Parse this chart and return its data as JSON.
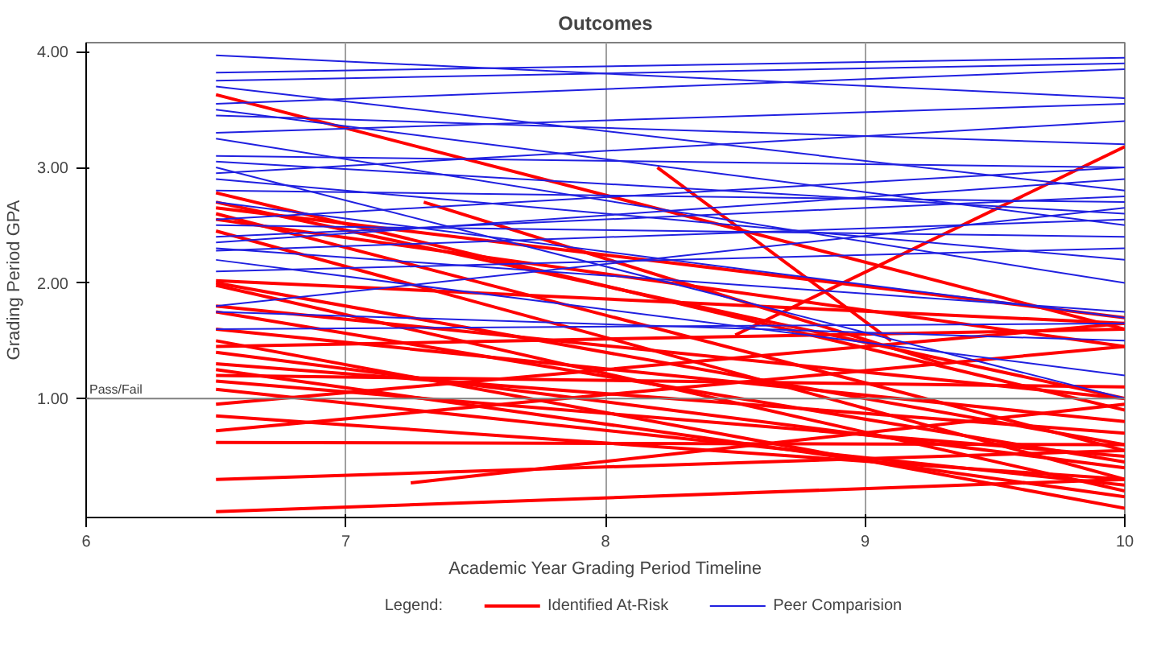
{
  "chart_data": {
    "type": "line",
    "title": "Outcomes",
    "xlabel": "Academic Year Grading Period Timeline",
    "ylabel": "Grading Period GPA",
    "legend_title": "Legend:",
    "legend": "bottom",
    "grid": "x",
    "marker": "none",
    "line_style": "solid",
    "xlim": [
      6,
      10
    ],
    "ylim": [
      -0.03,
      4.08
    ],
    "xticks": [
      6,
      7,
      8,
      9,
      10
    ],
    "yticks": [
      {
        "value": 1,
        "label": "1.00"
      },
      {
        "value": 2,
        "label": "2.00"
      },
      {
        "value": 3,
        "label": "3.00"
      },
      {
        "value": 4,
        "label": "4.00"
      }
    ],
    "ref_lines": [
      {
        "axis": "y",
        "value": 1,
        "label": "Pass/Fail",
        "color": "#808080"
      }
    ],
    "series": [
      {
        "name": "Identified At-Risk",
        "color": "#ff0000",
        "x": [
          6.5,
          10
        ],
        "values": [
          3.63,
          1.6
        ]
      },
      {
        "color": "#ff0000",
        "x": [
          6.5,
          10
        ],
        "values": [
          2.78,
          0.9
        ]
      },
      {
        "color": "#ff0000",
        "x": [
          6.5,
          10
        ],
        "values": [
          2.7,
          1.0
        ]
      },
      {
        "color": "#ff0000",
        "x": [
          6.5,
          10
        ],
        "values": [
          2.65,
          1.7
        ]
      },
      {
        "color": "#ff0000",
        "x": [
          6.5,
          10
        ],
        "values": [
          2.6,
          0.55
        ]
      },
      {
        "color": "#ff0000",
        "x": [
          6.5,
          10
        ],
        "values": [
          2.55,
          1.45
        ]
      },
      {
        "color": "#ff0000",
        "x": [
          6.5,
          10
        ],
        "values": [
          2.45,
          0.3
        ]
      },
      {
        "color": "#ff0000",
        "x": [
          6.5,
          10
        ],
        "values": [
          2.02,
          1.65
        ]
      },
      {
        "color": "#ff0000",
        "x": [
          6.5,
          10
        ],
        "values": [
          2.0,
          0.6
        ]
      },
      {
        "color": "#ff0000",
        "x": [
          6.5,
          10
        ],
        "values": [
          1.98,
          0.2
        ]
      },
      {
        "color": "#ff0000",
        "x": [
          6.5,
          10
        ],
        "values": [
          1.8,
          1.0
        ]
      },
      {
        "color": "#ff0000",
        "x": [
          6.5,
          10
        ],
        "values": [
          1.75,
          0.45
        ]
      },
      {
        "color": "#ff0000",
        "x": [
          6.5,
          10
        ],
        "values": [
          1.6,
          0.8
        ]
      },
      {
        "color": "#ff0000",
        "x": [
          6.5,
          10
        ],
        "values": [
          1.5,
          0.05
        ]
      },
      {
        "color": "#ff0000",
        "x": [
          6.5,
          10
        ],
        "values": [
          1.45,
          1.6
        ]
      },
      {
        "color": "#ff0000",
        "x": [
          6.5,
          10
        ],
        "values": [
          1.4,
          0.4
        ]
      },
      {
        "color": "#ff0000",
        "x": [
          6.5,
          10
        ],
        "values": [
          1.3,
          0.7
        ]
      },
      {
        "color": "#ff0000",
        "x": [
          6.5,
          10
        ],
        "values": [
          1.25,
          0.15
        ]
      },
      {
        "color": "#ff0000",
        "x": [
          6.5,
          10
        ],
        "values": [
          1.2,
          1.1
        ]
      },
      {
        "color": "#ff0000",
        "x": [
          6.5,
          10
        ],
        "values": [
          1.15,
          0.5
        ]
      },
      {
        "color": "#ff0000",
        "x": [
          6.5,
          10
        ],
        "values": [
          1.08,
          0.25
        ]
      },
      {
        "color": "#ff0000",
        "x": [
          6.5,
          10
        ],
        "values": [
          0.95,
          1.65
        ]
      },
      {
        "color": "#ff0000",
        "x": [
          6.5,
          10
        ],
        "values": [
          0.85,
          0.3
        ]
      },
      {
        "color": "#ff0000",
        "x": [
          6.5,
          10
        ],
        "values": [
          0.72,
          1.45
        ]
      },
      {
        "color": "#ff0000",
        "x": [
          6.5,
          10
        ],
        "values": [
          0.62,
          0.6
        ]
      },
      {
        "color": "#ff0000",
        "x": [
          6.5,
          10
        ],
        "values": [
          0.3,
          0.55
        ]
      },
      {
        "color": "#ff0000",
        "x": [
          6.5,
          10
        ],
        "values": [
          0.02,
          0.3
        ]
      },
      {
        "color": "#ff0000",
        "x": [
          7.25,
          10
        ],
        "values": [
          0.27,
          0.95
        ]
      },
      {
        "color": "#ff0000",
        "x": [
          8.2,
          9.1
        ],
        "values": [
          3.0,
          1.5
        ]
      },
      {
        "color": "#ff0000",
        "x": [
          8.5,
          10
        ],
        "values": [
          1.55,
          3.18
        ]
      },
      {
        "color": "#ff0000",
        "x": [
          7.3,
          9.3
        ],
        "values": [
          2.7,
          1.3
        ]
      },
      {
        "name": "Peer Comparision",
        "color": "#2020e0",
        "x": [
          6.5,
          10
        ],
        "values": [
          3.97,
          3.6
        ]
      },
      {
        "color": "#2020e0",
        "x": [
          6.5,
          10
        ],
        "values": [
          3.82,
          3.95
        ]
      },
      {
        "color": "#2020e0",
        "x": [
          6.5,
          10
        ],
        "values": [
          3.75,
          3.9
        ]
      },
      {
        "color": "#2020e0",
        "x": [
          6.5,
          10
        ],
        "values": [
          3.7,
          2.8
        ]
      },
      {
        "color": "#2020e0",
        "x": [
          6.5,
          10
        ],
        "values": [
          3.55,
          3.85
        ]
      },
      {
        "color": "#2020e0",
        "x": [
          6.5,
          10
        ],
        "values": [
          3.5,
          2.5
        ]
      },
      {
        "color": "#2020e0",
        "x": [
          6.5,
          10
        ],
        "values": [
          3.45,
          3.2
        ]
      },
      {
        "color": "#2020e0",
        "x": [
          6.5,
          10
        ],
        "values": [
          3.3,
          3.55
        ]
      },
      {
        "color": "#2020e0",
        "x": [
          6.5,
          10
        ],
        "values": [
          3.25,
          2.0
        ]
      },
      {
        "color": "#2020e0",
        "x": [
          6.5,
          10
        ],
        "values": [
          3.1,
          3.0
        ]
      },
      {
        "color": "#2020e0",
        "x": [
          6.5,
          10
        ],
        "values": [
          3.05,
          2.6
        ]
      },
      {
        "color": "#2020e0",
        "x": [
          6.5,
          10
        ],
        "values": [
          2.95,
          3.4
        ]
      },
      {
        "color": "#2020e0",
        "x": [
          6.5,
          10
        ],
        "values": [
          2.9,
          2.2
        ]
      },
      {
        "color": "#2020e0",
        "x": [
          6.5,
          10
        ],
        "values": [
          2.8,
          2.7
        ]
      },
      {
        "color": "#2020e0",
        "x": [
          6.5,
          10
        ],
        "values": [
          2.7,
          1.7
        ]
      },
      {
        "color": "#2020e0",
        "x": [
          6.5,
          10
        ],
        "values": [
          2.55,
          3.0
        ]
      },
      {
        "color": "#2020e0",
        "x": [
          6.5,
          10
        ],
        "values": [
          2.5,
          2.4
        ]
      },
      {
        "color": "#2020e0",
        "x": [
          6.5,
          10
        ],
        "values": [
          2.35,
          2.9
        ]
      },
      {
        "color": "#2020e0",
        "x": [
          6.5,
          10
        ],
        "values": [
          2.3,
          1.75
        ]
      },
      {
        "color": "#2020e0",
        "x": [
          6.5,
          10
        ],
        "values": [
          2.28,
          2.55
        ]
      },
      {
        "color": "#2020e0",
        "x": [
          6.5,
          10
        ],
        "values": [
          2.2,
          1.2
        ]
      },
      {
        "color": "#2020e0",
        "x": [
          6.5,
          10
        ],
        "values": [
          2.1,
          2.3
        ]
      },
      {
        "color": "#2020e0",
        "x": [
          6.5,
          10
        ],
        "values": [
          1.8,
          2.65
        ]
      },
      {
        "color": "#2020e0",
        "x": [
          6.5,
          10
        ],
        "values": [
          1.75,
          1.5
        ]
      },
      {
        "color": "#2020e0",
        "x": [
          6.5,
          10
        ],
        "values": [
          1.6,
          1.65
        ]
      },
      {
        "color": "#2020e0",
        "x": [
          6.5,
          10
        ],
        "values": [
          3.0,
          1.0
        ]
      },
      {
        "color": "#2020e0",
        "x": [
          6.5,
          10
        ],
        "values": [
          2.4,
          2.75
        ]
      }
    ]
  }
}
